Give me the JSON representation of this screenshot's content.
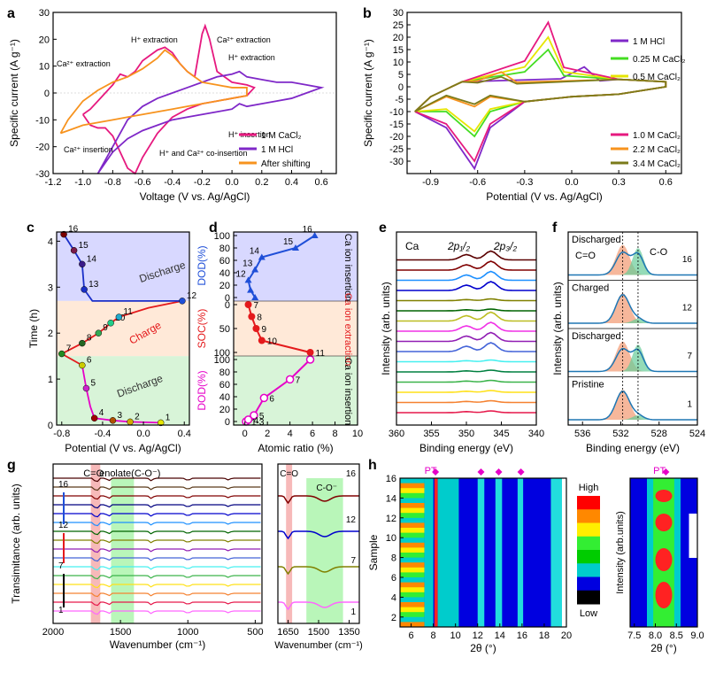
{
  "panel_labels": [
    "a",
    "b",
    "c",
    "d",
    "e",
    "f",
    "g",
    "h"
  ],
  "colors": {
    "magenta": "#e6197f",
    "purple": "#7f28c8",
    "orange": "#f7931e",
    "green": "#44dd22",
    "yellow": "#e6e600",
    "olive": "#7b7b1a",
    "blue": "#1f4fd8",
    "red": "#e41a1c",
    "pinkpt": "#e600c8"
  },
  "chart_data": [
    {
      "panel": "a",
      "type": "line",
      "xlabel": "Voltage (V vs. Ag/AgCl)",
      "ylabel": "Specific current (A g⁻¹)",
      "xlim": [
        -1.2,
        0.7
      ],
      "ylim": [
        -30,
        30
      ],
      "xticks": [
        "-1.2",
        "-1.0",
        "-0.8",
        "-0.6",
        "-0.4",
        "-0.2",
        "0.0",
        "0.2",
        "0.4",
        "0.6"
      ],
      "yticks": [
        "-30",
        "-20",
        "-10",
        "0",
        "10",
        "20",
        "30"
      ],
      "legend": [
        "1 M CaCl₂",
        "1 M HCl",
        "After shifting"
      ],
      "annotations": [
        "Ca²⁺ extraction",
        "H⁺ extraction",
        "Ca²⁺ extraction",
        "H⁺ extraction",
        "H⁺ insertion",
        "Ca²⁺ insertion",
        "H⁺ and Ca²⁺ co-insertion"
      ],
      "series": [
        {
          "name": "1 M CaCl₂",
          "x": [
            -1.0,
            -0.95,
            -0.9,
            -0.85,
            -0.8,
            -0.75,
            -0.7,
            -0.65,
            -0.6,
            -0.55,
            -0.5,
            -0.45,
            -0.4,
            -0.35,
            -0.3,
            -0.25,
            -0.2,
            -0.18,
            -0.15,
            -0.1,
            0.0,
            0.1,
            0.15,
            0.1,
            0.0,
            -0.1,
            -0.2,
            -0.3,
            -0.4,
            -0.5,
            -0.6,
            -0.65,
            -0.7,
            -0.75,
            -0.8,
            -0.85,
            -0.9,
            -0.95,
            -1.0
          ],
          "y": [
            -8,
            -6,
            -3,
            0,
            3,
            7,
            6,
            8,
            12,
            14,
            16,
            17,
            15,
            11,
            8,
            6,
            22,
            25,
            20,
            8,
            4,
            3,
            2,
            -1,
            -2,
            -3,
            -4,
            -6,
            -9,
            -15,
            -24,
            -30,
            -28,
            -22,
            -16,
            -13,
            -13,
            -12,
            -8
          ]
        },
        {
          "name": "1 M HCl",
          "x": [
            -0.9,
            -0.8,
            -0.7,
            -0.6,
            -0.5,
            -0.4,
            -0.3,
            -0.2,
            -0.1,
            0.0,
            0.05,
            0.1,
            0.2,
            0.3,
            0.4,
            0.5,
            0.6,
            0.5,
            0.4,
            0.3,
            0.2,
            0.1,
            0.05,
            0.0,
            -0.1,
            -0.2,
            -0.3,
            -0.4,
            -0.5,
            -0.6,
            -0.7,
            -0.8,
            -0.9
          ],
          "y": [
            -30,
            -20,
            -10,
            -5,
            -2,
            0,
            2,
            4,
            6,
            7,
            8,
            6,
            5,
            4,
            4,
            3,
            2,
            0,
            -2,
            -3,
            -4,
            -5,
            -4,
            -6,
            -7,
            -8,
            -9,
            -10,
            -12,
            -14,
            -17,
            -22,
            -30
          ]
        },
        {
          "name": "After shifting",
          "x": [
            -1.15,
            -1.1,
            -1.0,
            -0.9,
            -0.8,
            -0.7,
            -0.6,
            -0.5,
            -0.45,
            -0.4,
            -0.3,
            -0.2,
            -0.1,
            0.0,
            0.1,
            0.1,
            0.0,
            -0.1,
            -0.2,
            -0.3,
            -0.4,
            -0.5,
            -0.6,
            -0.7,
            -0.8,
            -0.9,
            -1.0,
            -1.1,
            -1.15
          ],
          "y": [
            -15,
            -10,
            -3,
            1,
            4,
            6,
            9,
            13,
            16,
            14,
            8,
            4,
            3,
            2,
            2,
            -1,
            -2,
            -3,
            -4,
            -5,
            -6,
            -7,
            -8,
            -9,
            -10,
            -11,
            -12,
            -14,
            -15
          ]
        }
      ]
    },
    {
      "panel": "b",
      "type": "line",
      "xlabel": "Potential (V vs. Ag/AgCl)",
      "ylabel": "Specific current (A g⁻¹)",
      "xlim": [
        -1.05,
        0.7
      ],
      "ylim": [
        -35,
        30
      ],
      "xticks": [
        "-0.9",
        "-0.6",
        "-0.3",
        "0.0",
        "0.3",
        "0.6"
      ],
      "yticks": [
        "-30",
        "-25",
        "-20",
        "-15",
        "-10",
        "-5",
        "0",
        "5",
        "10",
        "15",
        "20",
        "25",
        "30"
      ],
      "legend": [
        "1 M HCl",
        "0.25 M CaCl₂",
        "0.5 M CaCl₂",
        "1.0 M CaCl₂",
        "2.2 M CaCl₂",
        "3.4 M CaCl₂"
      ],
      "series": [
        {
          "name": "1 M HCl",
          "peak_ox": [
            0.08,
            8
          ],
          "peak_red": [
            -0.62,
            -33
          ]
        },
        {
          "name": "0.25 M CaCl₂",
          "peak_ox": [
            -0.15,
            15
          ],
          "peak_red": [
            -0.62,
            -20
          ]
        },
        {
          "name": "0.5 M CaCl₂",
          "peak_ox": [
            -0.15,
            20
          ],
          "peak_red": [
            -0.62,
            -18
          ]
        },
        {
          "name": "1.0 M CaCl₂",
          "peak_ox": [
            -0.15,
            26
          ],
          "peak_red": [
            -0.62,
            -30
          ]
        },
        {
          "name": "2.2 M CaCl₂",
          "peak_ox": [
            -0.45,
            6
          ],
          "peak_red": [
            -0.62,
            -8
          ]
        },
        {
          "name": "3.4 M CaCl₂",
          "peak_ox": [
            -0.45,
            4
          ],
          "peak_red": [
            -0.62,
            -7
          ]
        }
      ]
    },
    {
      "panel": "c",
      "type": "line",
      "xlabel": "Potential (V vs. Ag/AgCl)",
      "ylabel": "Time (h)",
      "xlim": [
        -0.85,
        0.45
      ],
      "ylim": [
        0,
        4.2
      ],
      "xticks": [
        "-0.8",
        "-0.4",
        "0.0",
        "0.4"
      ],
      "yticks": [
        "0",
        "1",
        "2",
        "3",
        "4"
      ],
      "region_labels": [
        "Discharge",
        "Charge",
        "Discharge"
      ],
      "points": [
        {
          "label": "1",
          "x": 0.17,
          "y": 0.05
        },
        {
          "label": "2",
          "x": -0.13,
          "y": 0.07
        },
        {
          "label": "3",
          "x": -0.3,
          "y": 0.1
        },
        {
          "label": "4",
          "x": -0.48,
          "y": 0.15
        },
        {
          "label": "5",
          "x": -0.56,
          "y": 0.8
        },
        {
          "label": "6",
          "x": -0.6,
          "y": 1.3
        },
        {
          "label": "7",
          "x": -0.8,
          "y": 1.55
        },
        {
          "label": "8",
          "x": -0.6,
          "y": 1.78
        },
        {
          "label": "9",
          "x": -0.44,
          "y": 2.0
        },
        {
          "label": "10",
          "x": -0.32,
          "y": 2.22
        },
        {
          "label": "11",
          "x": -0.24,
          "y": 2.35
        },
        {
          "label": "12",
          "x": 0.38,
          "y": 2.7
        },
        {
          "label": "13",
          "x": -0.58,
          "y": 2.95
        },
        {
          "label": "14",
          "x": -0.6,
          "y": 3.5
        },
        {
          "label": "15",
          "x": -0.68,
          "y": 3.8
        },
        {
          "label": "16",
          "x": -0.78,
          "y": 4.15
        }
      ]
    },
    {
      "panel": "d",
      "type": "line",
      "xlabel": "Atomic ratio (%)",
      "ylabel_top": "DOD(%)",
      "ylabel_mid": "SOC(%)",
      "ylabel_bot": "DOD(%)",
      "xlim": [
        -1,
        10
      ],
      "xticks": [
        "0",
        "2",
        "4",
        "6",
        "8",
        "10"
      ],
      "top_ticks": [
        "0",
        "20",
        "40",
        "60",
        "80",
        "100"
      ],
      "mid_ticks": [
        "0",
        "50",
        "100"
      ],
      "bot_ticks": [
        "0",
        "20",
        "40",
        "60",
        "80",
        "100"
      ],
      "region_labels": [
        "Ca ion insertion",
        "Ca ion extraction",
        "Ca ion insertion"
      ],
      "series": [
        {
          "name": "DOD top",
          "x": [
            0.9,
            0.5,
            0.3,
            0.9,
            1.5,
            4.5,
            6.2
          ],
          "y": [
            0,
            12,
            28,
            45,
            65,
            80,
            100
          ],
          "labels": [
            "12",
            "13",
            "14",
            "15",
            "16"
          ]
        },
        {
          "name": "SOC",
          "x": [
            0.3,
            0.6,
            1.0,
            1.5,
            5.8
          ],
          "y": [
            0,
            25,
            50,
            75,
            100
          ],
          "labels": [
            "7",
            "8",
            "9",
            "10",
            "11"
          ]
        },
        {
          "name": "DOD bottom",
          "x": [
            0.1,
            0.3,
            0.8,
            1.7,
            4.0,
            5.8
          ],
          "y": [
            0,
            3,
            10,
            38,
            68,
            100
          ],
          "labels": [
            "1-3",
            "4",
            "5",
            "6",
            "7"
          ]
        }
      ]
    },
    {
      "panel": "e",
      "type": "line",
      "xlabel": "Binding energy (eV)",
      "ylabel": "Intensity (arb. units)",
      "xlim": [
        360,
        340
      ],
      "xticks": [
        "360",
        "355",
        "350",
        "345",
        "340"
      ],
      "labels": [
        "Ca",
        "2p₁/₂",
        "2p₃/₂"
      ],
      "peaks": [
        350,
        346.5
      ]
    },
    {
      "panel": "f",
      "type": "line",
      "xlabel": "Binding energy (eV)",
      "ylabel": "Intensity (arb. units)",
      "xlim": [
        537.5,
        524
      ],
      "xticks": [
        "536",
        "532",
        "528",
        "524"
      ],
      "labels": [
        "Discharged",
        "C=O",
        "C-O",
        "Charged",
        "Discharged",
        "Pristine"
      ],
      "sample_numbers": [
        "16",
        "12",
        "7",
        "1"
      ]
    },
    {
      "panel": "g",
      "type": "line",
      "xlabel": "Wavenumber (cm⁻¹)",
      "ylabel": "Transimitance (arb. units)",
      "xlim": [
        2000,
        450
      ],
      "xticks": [
        "2000",
        "1500",
        "1000",
        "500"
      ],
      "labels": [
        "C=O",
        "enolate(C-O⁻)"
      ],
      "sample_numbers": [
        "16",
        "12",
        "7",
        "1"
      ],
      "inset": {
        "xticks": [
          "1650",
          "1500",
          "1350"
        ],
        "labels": [
          "C=O",
          "C-O⁻"
        ],
        "sample_numbers": [
          "16",
          "12",
          "7",
          "1"
        ]
      }
    },
    {
      "panel": "h",
      "type": "heatmap",
      "xlabel": "2θ (°)",
      "ylabel": "Sample",
      "xlim": [
        5,
        20
      ],
      "ylim": [
        1,
        16
      ],
      "xticks": [
        "6",
        "8",
        "10",
        "12",
        "14",
        "16",
        "18",
        "20"
      ],
      "yticks": [
        "2",
        "4",
        "6",
        "8",
        "10",
        "12",
        "14",
        "16"
      ],
      "colorbar": [
        "High",
        "Low"
      ],
      "marker_label": "PT",
      "inset": {
        "xlabel": "2θ (°)",
        "ylabel": "Intensity (arb.units)",
        "xticks": [
          "7.5",
          "8.0",
          "8.5",
          "9.0"
        ],
        "marker_label": "PT"
      }
    }
  ]
}
